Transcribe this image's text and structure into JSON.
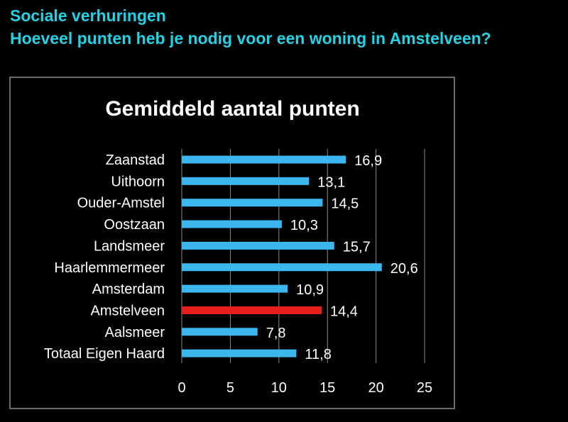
{
  "slide": {
    "title_line1": "Sociale verhuringen",
    "title_line2": "Hoeveel punten heb je nodig voor een woning in Amstelveen?",
    "title_color": "#22d3e6"
  },
  "chart_data": {
    "type": "bar",
    "orientation": "horizontal",
    "title": "Gemiddeld aantal punten",
    "categories": [
      "Zaanstad",
      "Uithoorn",
      "Ouder-Amstel",
      "Oostzaan",
      "Landsmeer",
      "Haarlemmermeer",
      "Amsterdam",
      "Amstelveen",
      "Aalsmeer",
      "Totaal Eigen Haard"
    ],
    "values": [
      16.9,
      13.1,
      14.5,
      10.3,
      15.7,
      20.6,
      10.9,
      14.4,
      7.8,
      11.8
    ],
    "value_labels": [
      "16,9",
      "13,1",
      "14,5",
      "10,3",
      "15,7",
      "20,6",
      "10,9",
      "14,4",
      "7,8",
      "11,8"
    ],
    "xlim": [
      0,
      25
    ],
    "xticks": [
      "0",
      "5",
      "10",
      "15",
      "20",
      "25"
    ],
    "grid": true,
    "bar_color": "#3bb7ee",
    "highlight_color": "#e8201c",
    "highlight_category": "Amstelveen"
  }
}
